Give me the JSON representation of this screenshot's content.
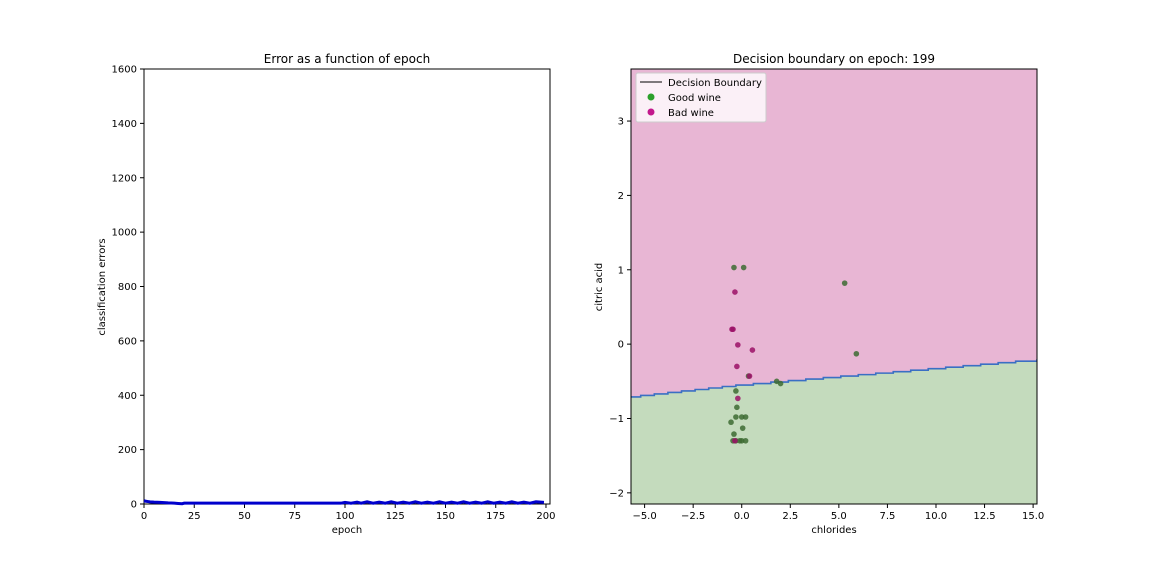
{
  "chart_data": [
    {
      "type": "line",
      "title": "Error as a function of epoch",
      "xlabel": "epoch",
      "ylabel": "classification errors",
      "xlim": [
        0,
        202
      ],
      "ylim": [
        0,
        1600
      ],
      "xticks": [
        0,
        25,
        50,
        75,
        100,
        125,
        150,
        175,
        200
      ],
      "yticks": [
        0,
        200,
        400,
        600,
        800,
        1000,
        1200,
        1400,
        1600
      ],
      "grid": false,
      "series": [
        {
          "color": "#0000cc",
          "x": [
            0,
            1,
            2,
            3,
            5,
            8,
            10,
            12,
            15,
            17,
            19,
            20,
            25,
            30,
            40,
            50,
            60,
            70,
            80,
            90,
            95,
            98,
            100,
            103,
            106,
            108,
            111,
            114,
            117,
            120,
            123,
            126,
            129,
            132,
            135,
            138,
            141,
            144,
            147,
            150,
            153,
            156,
            159,
            162,
            165,
            168,
            171,
            174,
            177,
            180,
            183,
            186,
            189,
            192,
            195,
            199
          ],
          "y": [
            12,
            10,
            9,
            8,
            7,
            6,
            5,
            4,
            3,
            2,
            1,
            3,
            3,
            3,
            3,
            3,
            3,
            3,
            3,
            3,
            3,
            3,
            6,
            3,
            7,
            3,
            8,
            3,
            7,
            3,
            8,
            3,
            7,
            3,
            8,
            3,
            7,
            3,
            8,
            3,
            7,
            3,
            8,
            3,
            7,
            3,
            8,
            3,
            7,
            3,
            8,
            3,
            7,
            3,
            8,
            6
          ]
        }
      ]
    },
    {
      "type": "scatter",
      "title": "Decision boundary on epoch: 199",
      "xlabel": "chlorides",
      "ylabel": "citric acid",
      "xlim": [
        -5.7,
        15.2
      ],
      "ylim": [
        -2.15,
        3.7
      ],
      "xticks": [
        "−5.0",
        "−2.5",
        "0.0",
        "2.5",
        "5.0",
        "7.5",
        "10.0",
        "12.5",
        "15.0"
      ],
      "xtick_values": [
        -5,
        -2.5,
        0,
        2.5,
        5,
        7.5,
        10,
        12.5,
        15
      ],
      "yticks": [
        "−2",
        "−1",
        "0",
        "1",
        "2",
        "3"
      ],
      "ytick_values": [
        -2,
        -1,
        0,
        1,
        2,
        3
      ],
      "legend_position": "top-left",
      "regions": [
        {
          "label": "Bad wine region",
          "color": "#e8b6d4"
        },
        {
          "label": "Good wine region",
          "color": "#c4dbbd"
        }
      ],
      "boundary": {
        "name": "Decision Boundary",
        "color": "#3a6fc4",
        "x": [
          -5.7,
          -5.2,
          -4.5,
          -3.8,
          -3.1,
          -2.4,
          -1.7,
          -1.0,
          -0.3,
          0.6,
          1.5,
          2.4,
          3.3,
          4.2,
          5.1,
          6.0,
          6.9,
          7.8,
          8.7,
          9.6,
          10.5,
          11.4,
          12.3,
          13.2,
          14.1,
          15.2
        ],
        "y": [
          -0.71,
          -0.69,
          -0.67,
          -0.65,
          -0.63,
          -0.61,
          -0.59,
          -0.57,
          -0.55,
          -0.53,
          -0.51,
          -0.49,
          -0.47,
          -0.45,
          -0.43,
          -0.41,
          -0.39,
          -0.37,
          -0.35,
          -0.33,
          -0.31,
          -0.29,
          -0.27,
          -0.25,
          -0.23,
          -0.2
        ]
      },
      "series": [
        {
          "name": "Good wine",
          "color": "#2ca02c",
          "points": [
            [
              -0.4,
              1.03
            ],
            [
              0.1,
              1.03
            ],
            [
              -0.55,
              -1.05
            ],
            [
              -0.3,
              -0.98
            ],
            [
              0.0,
              -0.98
            ],
            [
              0.2,
              -0.98
            ],
            [
              -0.25,
              -0.85
            ],
            [
              0.05,
              -1.13
            ],
            [
              -0.4,
              -1.21
            ],
            [
              -0.45,
              -1.3
            ],
            [
              -0.3,
              -1.3
            ],
            [
              0.0,
              -1.3
            ],
            [
              0.2,
              -1.3
            ],
            [
              -0.1,
              -1.3
            ],
            [
              0.35,
              -0.43
            ],
            [
              1.8,
              -0.5
            ],
            [
              2.0,
              -0.53
            ],
            [
              5.3,
              0.82
            ],
            [
              5.9,
              -0.13
            ],
            [
              -0.3,
              -0.63
            ]
          ]
        },
        {
          "name": "Bad wine",
          "color": "#c2188c",
          "points": [
            [
              -0.35,
              0.7
            ],
            [
              -0.45,
              0.2
            ],
            [
              -0.5,
              0.2
            ],
            [
              -0.2,
              -0.01
            ],
            [
              0.55,
              -0.08
            ],
            [
              -0.25,
              -0.3
            ],
            [
              0.4,
              -0.43
            ],
            [
              -0.2,
              -0.73
            ],
            [
              -0.35,
              -1.3
            ]
          ]
        }
      ]
    }
  ]
}
